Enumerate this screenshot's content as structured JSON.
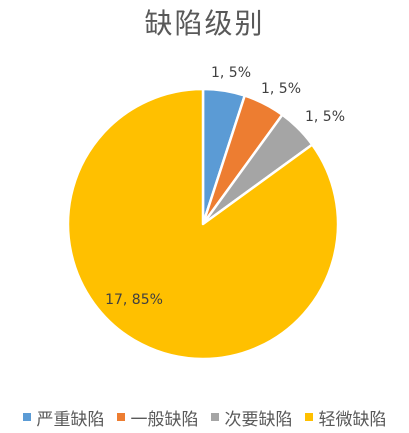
{
  "chart_data": {
    "type": "pie",
    "title": "缺陷级别",
    "categories": [
      "严重缺陷",
      "一般缺陷",
      "次要缺陷",
      "轻微缺陷"
    ],
    "values": [
      1,
      1,
      1,
      17
    ],
    "percentages": [
      5,
      5,
      5,
      85
    ],
    "labels": [
      "1, 5%",
      "1, 5%",
      "1, 5%",
      "17, 85%"
    ],
    "colors": [
      "#5b9bd5",
      "#ed7d31",
      "#a5a5a5",
      "#ffc000"
    ],
    "legend_position": "bottom"
  }
}
